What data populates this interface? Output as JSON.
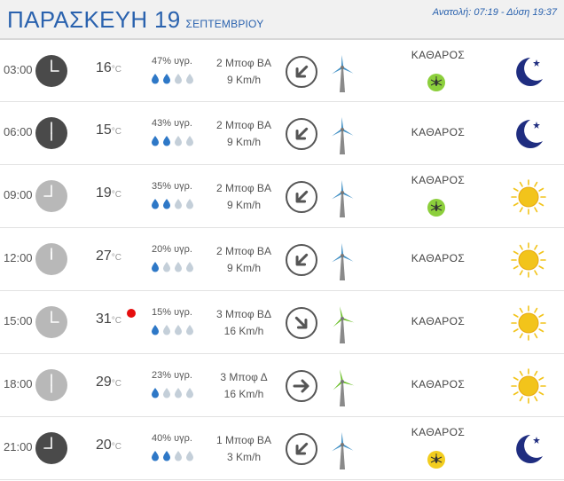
{
  "header": {
    "day": "ΠΑΡΑΣΚΕΥΗ 19",
    "month": "ΣΕΠΤΕΜΒΡΙΟΥ",
    "sun_times": "Ανατολή: 07:19 - Δύση 19:37"
  },
  "colors": {
    "accent": "#2a62ae",
    "drop_full": "#2e78c7",
    "drop_empty": "#c4cfd9",
    "sun": "#f2c41b",
    "moon": "#1f2d80",
    "alert": "#e60e0e"
  },
  "rows": [
    {
      "time": "03:00",
      "clock_style": "dark",
      "temp": "16",
      "unit": "°C",
      "alert": false,
      "humidity": "47% υγρ.",
      "drops_filled": 2,
      "wind_speed": "2 Μποφ ΒΑ",
      "wind_kmh": "9 Km/h",
      "arrow": "arrow-down-left-icon",
      "turbine": "blue",
      "sky": "ΚΑΘΑΡΟΣ",
      "mosquito": "green",
      "icon": "moon-star-icon"
    },
    {
      "time": "06:00",
      "clock_style": "dark",
      "temp": "15",
      "unit": "°C",
      "alert": false,
      "humidity": "43% υγρ.",
      "drops_filled": 2,
      "wind_speed": "2 Μποφ ΒΑ",
      "wind_kmh": "9 Km/h",
      "arrow": "arrow-down-left-icon",
      "turbine": "blue",
      "sky": "ΚΑΘΑΡΟΣ",
      "mosquito": "",
      "icon": "moon-star-icon"
    },
    {
      "time": "09:00",
      "clock_style": "light",
      "temp": "19",
      "unit": "°C",
      "alert": false,
      "humidity": "35% υγρ.",
      "drops_filled": 2,
      "wind_speed": "2 Μποφ ΒΑ",
      "wind_kmh": "9 Km/h",
      "arrow": "arrow-down-left-icon",
      "turbine": "blue",
      "sky": "ΚΑΘΑΡΟΣ",
      "mosquito": "green",
      "icon": "sun-icon"
    },
    {
      "time": "12:00",
      "clock_style": "light",
      "temp": "27",
      "unit": "°C",
      "alert": false,
      "humidity": "20% υγρ.",
      "drops_filled": 1,
      "wind_speed": "2 Μποφ ΒΑ",
      "wind_kmh": "9 Km/h",
      "arrow": "arrow-down-left-icon",
      "turbine": "blue",
      "sky": "ΚΑΘΑΡΟΣ",
      "mosquito": "",
      "icon": "sun-icon"
    },
    {
      "time": "15:00",
      "clock_style": "light",
      "temp": "31",
      "unit": "°C",
      "alert": true,
      "humidity": "15% υγρ.",
      "drops_filled": 1,
      "wind_speed": "3 Μποφ ΒΔ",
      "wind_kmh": "16 Km/h",
      "arrow": "arrow-down-right-icon",
      "turbine": "green",
      "sky": "ΚΑΘΑΡΟΣ",
      "mosquito": "",
      "icon": "sun-icon"
    },
    {
      "time": "18:00",
      "clock_style": "light",
      "temp": "29",
      "unit": "°C",
      "alert": false,
      "humidity": "23% υγρ.",
      "drops_filled": 1,
      "wind_speed": "3 Μποφ Δ",
      "wind_kmh": "16 Km/h",
      "arrow": "arrow-right-icon",
      "turbine": "green",
      "sky": "ΚΑΘΑΡΟΣ",
      "mosquito": "",
      "icon": "sun-icon"
    },
    {
      "time": "21:00",
      "clock_style": "dark",
      "temp": "20",
      "unit": "°C",
      "alert": false,
      "humidity": "40% υγρ.",
      "drops_filled": 2,
      "wind_speed": "1 Μποφ ΒΑ",
      "wind_kmh": "3 Km/h",
      "arrow": "arrow-down-left-icon",
      "turbine": "blue",
      "sky": "ΚΑΘΑΡΟΣ",
      "mosquito": "yellow",
      "icon": "moon-star-icon"
    }
  ]
}
